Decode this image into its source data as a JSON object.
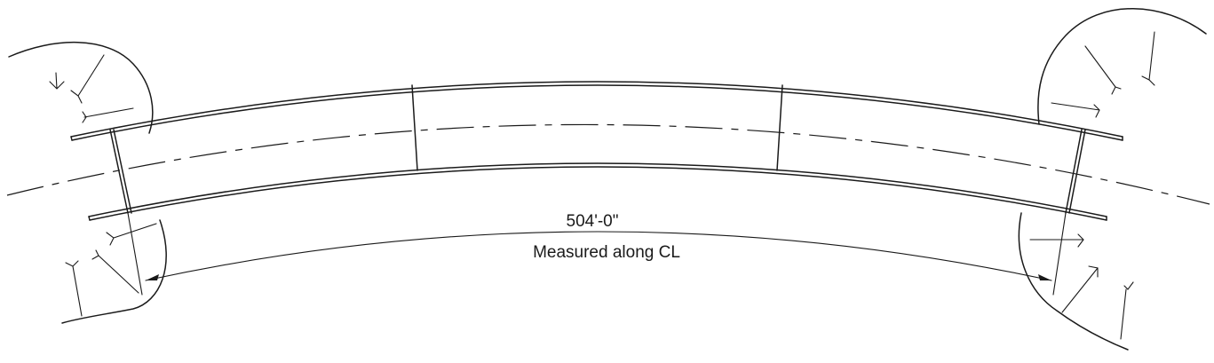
{
  "dimension": {
    "length": "504'-0\"",
    "note": "Measured along CL"
  },
  "colors": {
    "line": "#1a1a1a",
    "background": "#ffffff"
  }
}
